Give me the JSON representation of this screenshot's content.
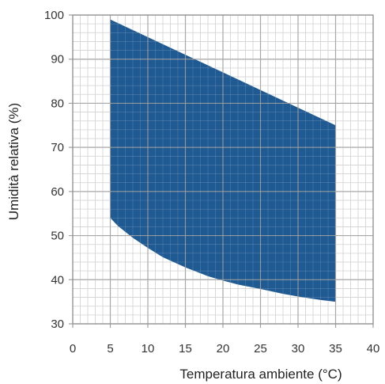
{
  "chart_data": {
    "type": "area",
    "xlabel": "Temperatura ambiente (°C)",
    "ylabel": "Umidità relativa (%)",
    "xlim": [
      0,
      40
    ],
    "ylim": [
      30,
      100
    ],
    "x_ticks": [
      "0",
      "5",
      "10",
      "15",
      "20",
      "25",
      "30",
      "35",
      "40"
    ],
    "y_ticks": [
      "30",
      "40",
      "50",
      "60",
      "70",
      "80",
      "90",
      "100"
    ],
    "minor_x_step": 1,
    "minor_y_step": 2,
    "grid": true,
    "fill_color": "#1f5a93",
    "upper_boundary": [
      [
        5,
        99
      ],
      [
        35,
        75
      ]
    ],
    "lower_boundary": [
      [
        5,
        54
      ],
      [
        6,
        52.2
      ],
      [
        8,
        49.5
      ],
      [
        10,
        47.2
      ],
      [
        12,
        45.1
      ],
      [
        15,
        42.8
      ],
      [
        18,
        40.8
      ],
      [
        20,
        39.8
      ],
      [
        22,
        38.9
      ],
      [
        25,
        37.9
      ],
      [
        28,
        36.8
      ],
      [
        30,
        36.2
      ],
      [
        33,
        35.4
      ],
      [
        35,
        35
      ]
    ]
  }
}
